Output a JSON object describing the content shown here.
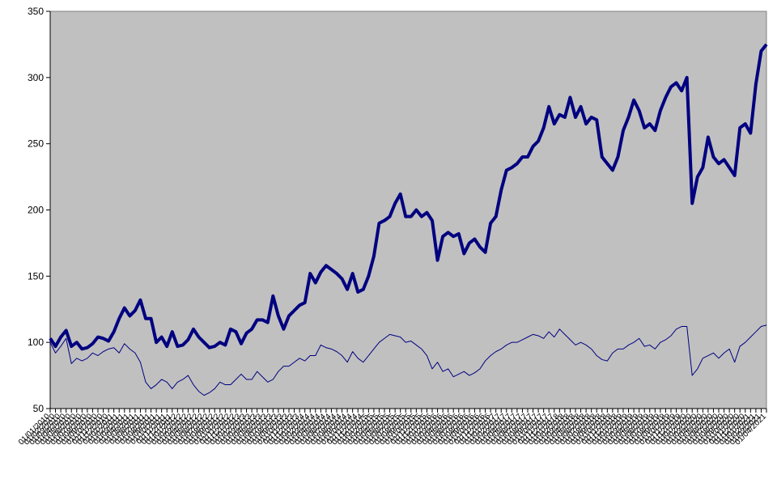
{
  "chart_data": {
    "type": "line",
    "categories": [
      "01/01/2010",
      "01/02/2010",
      "01/03/2010",
      "01/04/2010",
      "01/05/2010",
      "01/06/2010",
      "01/07/2010",
      "01/08/2010",
      "01/09/2010",
      "01/10/2010",
      "01/11/2010",
      "01/12/2010",
      "01/01/2011",
      "01/02/2011",
      "01/03/2011",
      "01/04/2011",
      "01/05/2011",
      "01/06/2011",
      "01/07/2011",
      "01/08/2011",
      "01/09/2011",
      "01/10/2011",
      "01/11/2011",
      "01/12/2011",
      "01/01/2012",
      "01/02/2012",
      "01/03/2012",
      "01/04/2012",
      "01/05/2012",
      "01/06/2012",
      "01/07/2012",
      "01/08/2012",
      "01/09/2012",
      "01/10/2012",
      "01/11/2012",
      "01/12/2012",
      "01/01/2013",
      "01/02/2013",
      "01/03/2013",
      "01/04/2013",
      "01/05/2013",
      "01/06/2013",
      "01/07/2013",
      "01/08/2013",
      "01/09/2013",
      "01/10/2013",
      "01/11/2013",
      "01/12/2013",
      "01/01/2014",
      "01/02/2014",
      "01/03/2014",
      "01/04/2014",
      "01/05/2014",
      "01/06/2014",
      "01/07/2014",
      "01/08/2014",
      "01/09/2014",
      "01/10/2014",
      "01/11/2014",
      "01/12/2014",
      "01/01/2015",
      "01/02/2015",
      "01/03/2015",
      "01/04/2015",
      "01/05/2015",
      "01/06/2015",
      "01/07/2015",
      "01/08/2015",
      "01/09/2015",
      "01/10/2015",
      "01/11/2015",
      "01/12/2015",
      "01/01/2016",
      "01/02/2016",
      "01/03/2016",
      "01/04/2016",
      "01/05/2016",
      "01/06/2016",
      "01/07/2016",
      "01/08/2016",
      "01/09/2016",
      "01/10/2016",
      "01/11/2016",
      "01/12/2016",
      "01/01/2017",
      "01/02/2017",
      "01/03/2017",
      "01/04/2017",
      "01/05/2017",
      "01/06/2017",
      "01/07/2017",
      "01/08/2017",
      "01/09/2017",
      "01/10/2017",
      "01/11/2017",
      "01/12/2017",
      "01/01/2018",
      "01/02/2018",
      "01/03/2018",
      "01/04/2018",
      "01/05/2018",
      "01/06/2018",
      "01/07/2018",
      "01/08/2018",
      "01/09/2018",
      "01/10/2018",
      "01/11/2018",
      "01/12/2018",
      "01/01/2019",
      "01/02/2019",
      "01/03/2019",
      "01/04/2019",
      "01/05/2019",
      "01/06/2019",
      "01/07/2019",
      "01/08/2019",
      "01/09/2019",
      "01/10/2019",
      "01/11/2019",
      "01/12/2019",
      "01/01/2020",
      "01/02/2020",
      "01/03/2020",
      "01/04/2020",
      "01/05/2020",
      "01/06/2020",
      "01/07/2020",
      "01/08/2020",
      "01/09/2020",
      "01/10/2020",
      "01/11/2020",
      "01/12/2020",
      "01/01/2021",
      "01/02/2021",
      "01/03/2021",
      "01/04/2021"
    ],
    "series": [
      {
        "color": "#000080",
        "width": 4,
        "values": [
          103,
          97,
          104,
          109,
          97,
          100,
          95,
          96,
          99,
          104,
          103,
          101,
          108,
          118,
          126,
          120,
          124,
          132,
          118,
          118,
          100,
          104,
          97,
          108,
          97,
          98,
          102,
          110,
          104,
          100,
          96,
          97,
          100,
          98,
          110,
          108,
          99,
          107,
          110,
          117,
          117,
          115,
          135,
          120,
          110,
          120,
          124,
          128,
          130,
          152,
          145,
          153,
          158,
          155,
          152,
          148,
          140,
          152,
          138,
          140,
          150,
          165,
          190,
          192,
          195,
          205,
          212,
          195,
          195,
          200,
          195,
          198,
          192,
          162,
          180,
          183,
          180,
          182,
          167,
          175,
          178,
          172,
          168,
          190,
          195,
          215,
          230,
          232,
          235,
          240,
          240,
          248,
          252,
          262,
          278,
          265,
          272,
          270,
          285,
          270,
          278,
          265,
          270,
          268,
          240,
          235,
          230,
          240,
          260,
          270,
          283,
          275,
          262,
          265,
          260,
          275,
          285,
          293,
          296,
          290,
          300,
          205,
          225,
          232,
          255,
          240,
          235,
          238,
          232,
          226,
          262,
          265,
          258,
          295,
          320,
          325
        ]
      },
      {
        "color": "#000080",
        "width": 1,
        "values": [
          100,
          92,
          97,
          103,
          84,
          88,
          86,
          88,
          92,
          90,
          93,
          95,
          96,
          92,
          99,
          95,
          92,
          85,
          70,
          65,
          68,
          72,
          70,
          65,
          70,
          72,
          75,
          68,
          63,
          60,
          62,
          65,
          70,
          68,
          68,
          72,
          76,
          72,
          72,
          78,
          74,
          70,
          72,
          78,
          82,
          82,
          85,
          88,
          86,
          90,
          90,
          98,
          96,
          95,
          93,
          90,
          85,
          93,
          88,
          85,
          90,
          95,
          100,
          103,
          106,
          105,
          104,
          100,
          101,
          98,
          95,
          90,
          80,
          85,
          78,
          80,
          74,
          76,
          78,
          75,
          77,
          80,
          86,
          90,
          93,
          95,
          98,
          100,
          100,
          102,
          104,
          106,
          105,
          103,
          108,
          104,
          110,
          106,
          102,
          98,
          100,
          98,
          95,
          90,
          87,
          86,
          92,
          95,
          95,
          98,
          100,
          103,
          97,
          98,
          95,
          100,
          102,
          105,
          110,
          112,
          112,
          75,
          80,
          88,
          90,
          92,
          88,
          92,
          95,
          85,
          97,
          100,
          104,
          108,
          112,
          113
        ]
      }
    ],
    "ylim": [
      50,
      350
    ],
    "yticks": [
      50,
      100,
      150,
      200,
      250,
      300,
      350
    ],
    "plot_background": "#c0c0c0"
  }
}
